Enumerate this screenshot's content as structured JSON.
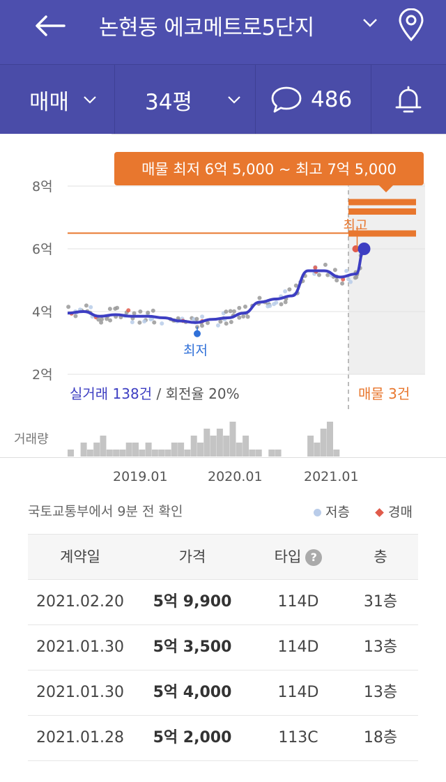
{
  "header": {
    "title": "논현동 에코메트로5단지",
    "back_icon": "arrow-left-icon",
    "location_icon": "map-pin-icon"
  },
  "filters": {
    "trade_type": "매매",
    "area": "34평",
    "comment_count": "486"
  },
  "chart": {
    "tooltip": "매물 최저 6억 5,000 ~ 최고 7억 5,000",
    "y_labels": [
      "8억",
      "6억",
      "4억",
      "2억"
    ],
    "low_label": "최저",
    "high_label": "최고",
    "transactions_label": "실거래 138건",
    "turnover_label": "회전율 20%",
    "listings_label": "매물 3건",
    "volume_label": "거래량",
    "x_labels": [
      "2019.01",
      "2020.01",
      "2021.01"
    ]
  },
  "chart_data": {
    "type": "line",
    "title": "",
    "ylabel": "",
    "ylim": [
      2,
      8
    ],
    "y_unit": "억",
    "series": [
      {
        "x": [
          "2018.01",
          "2018.03",
          "2018.05",
          "2018.07",
          "2018.09",
          "2018.11",
          "2019.01",
          "2019.03",
          "2019.05",
          "2019.07",
          "2019.09",
          "2019.11",
          "2020.01",
          "2020.03",
          "2020.05",
          "2020.07",
          "2020.09",
          "2020.11",
          "2021.01",
          "2021.02"
        ],
        "values": [
          3.95,
          4.0,
          3.85,
          3.9,
          3.85,
          3.85,
          3.8,
          3.7,
          3.65,
          3.75,
          3.8,
          3.95,
          4.3,
          4.4,
          4.5,
          5.3,
          5.3,
          5.1,
          5.2,
          6.0
        ]
      }
    ],
    "listing_range": [
      6.5,
      7.5
    ],
    "listings": [
      7.5,
      7.2,
      6.5
    ],
    "listing_count": 3,
    "volume": [
      1,
      0,
      2,
      1,
      2,
      3,
      1,
      1,
      1,
      2,
      2,
      1,
      2,
      1,
      1,
      1,
      2,
      2,
      1,
      3,
      2,
      4,
      3,
      4,
      3,
      5,
      2,
      3,
      1,
      1,
      0,
      1,
      1,
      0,
      0,
      0,
      0,
      3,
      2,
      4,
      5,
      1,
      0
    ]
  },
  "legend": {
    "source": "국토교통부에서 9분 전 확인",
    "low_floor": "저층",
    "auction": "경매",
    "low_floor_color": "#b9cce9",
    "auction_color": "#e05b4b"
  },
  "table": {
    "headers": [
      "계약일",
      "가격",
      "타입",
      "층"
    ],
    "help_icon": "question-circle-icon",
    "rows": [
      {
        "date": "2021.02.20",
        "price": "5억 9,900",
        "type": "114D",
        "floor": "31층"
      },
      {
        "date": "2021.01.30",
        "price": "5억 3,500",
        "type": "114D",
        "floor": "13층"
      },
      {
        "date": "2021.01.30",
        "price": "5억 4,000",
        "type": "114D",
        "floor": "13층"
      },
      {
        "date": "2021.01.28",
        "price": "5억 2,000",
        "type": "113C",
        "floor": "18층"
      }
    ]
  },
  "colors": {
    "header_bg": "#4d4fae",
    "accent_orange": "#e8772e",
    "line": "#3d3ec2"
  }
}
